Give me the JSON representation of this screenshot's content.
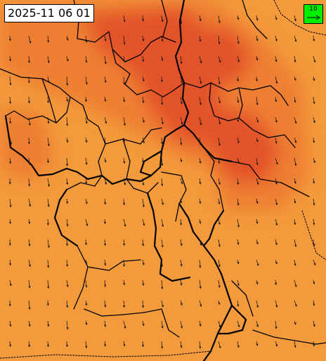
{
  "map": {
    "timestamp": "2025-11 06 01",
    "legend": {
      "value_label": "10",
      "color": "#00ee00"
    },
    "colors": {
      "base": "#f39a3c",
      "warm": "#ee7f33",
      "hot": "#e3532b",
      "border": "#000000",
      "vector": "#1a1a1a"
    },
    "layers": [
      "temperature-field",
      "regional-boundaries",
      "wind-vectors"
    ],
    "wind_direction_deg": 200
  }
}
